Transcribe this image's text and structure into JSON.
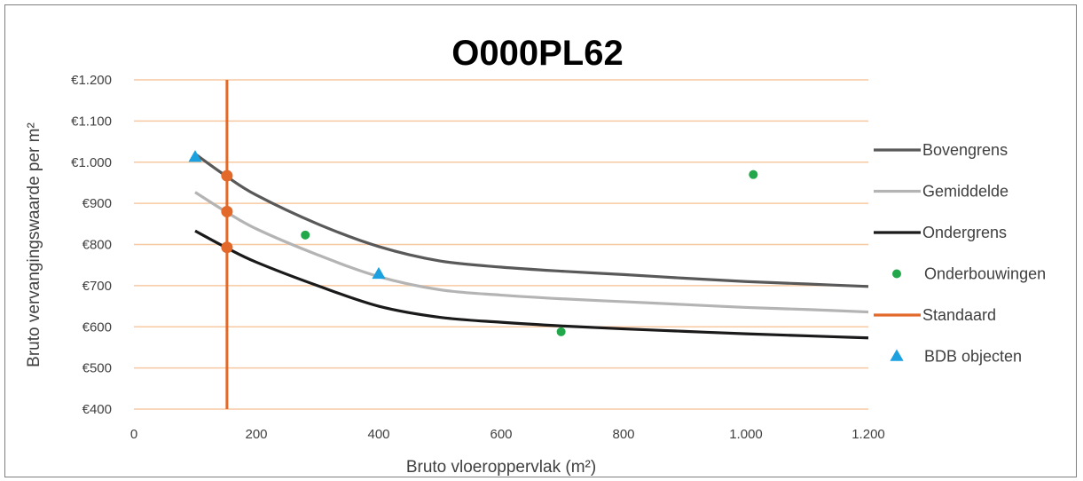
{
  "chart_data": {
    "type": "line",
    "title": "O000PL62",
    "xlabel": "Bruto vloeroppervlak (m²)",
    "ylabel": "Bruto vervangingswaarde per m²",
    "xlim": [
      0,
      1200
    ],
    "ylim": [
      400,
      1200
    ],
    "x_ticks": [
      0,
      200,
      400,
      600,
      800,
      1000,
      1200
    ],
    "x_tick_labels": [
      "0",
      "200",
      "400",
      "600",
      "800",
      "1.000",
      "1.200"
    ],
    "y_ticks": [
      400,
      500,
      600,
      700,
      800,
      900,
      1000,
      1100,
      1200
    ],
    "y_tick_labels": [
      "€400",
      "€500",
      "€600",
      "€700",
      "€800",
      "€900",
      "€1.000",
      "€1.100",
      "€1.200"
    ],
    "grid": "horizontal",
    "legend_position": "right",
    "series": [
      {
        "name": "Bovengrens",
        "kind": "line",
        "color": "#595959",
        "points": [
          [
            100,
            1020
          ],
          [
            150,
            967
          ],
          [
            200,
            920
          ],
          [
            300,
            850
          ],
          [
            400,
            795
          ],
          [
            500,
            760
          ],
          [
            600,
            745
          ],
          [
            700,
            735
          ],
          [
            800,
            727
          ],
          [
            900,
            718
          ],
          [
            1000,
            710
          ],
          [
            1100,
            704
          ],
          [
            1200,
            698
          ]
        ]
      },
      {
        "name": "Gemiddelde",
        "kind": "line",
        "color": "#b4b4b4",
        "points": [
          [
            100,
            927
          ],
          [
            150,
            880
          ],
          [
            200,
            838
          ],
          [
            300,
            775
          ],
          [
            400,
            722
          ],
          [
            500,
            690
          ],
          [
            600,
            677
          ],
          [
            700,
            668
          ],
          [
            800,
            661
          ],
          [
            900,
            654
          ],
          [
            1000,
            647
          ],
          [
            1100,
            642
          ],
          [
            1200,
            636
          ]
        ]
      },
      {
        "name": "Ondergrens",
        "kind": "line",
        "color": "#1a1a1a",
        "points": [
          [
            100,
            833
          ],
          [
            150,
            793
          ],
          [
            200,
            757
          ],
          [
            300,
            700
          ],
          [
            400,
            650
          ],
          [
            500,
            623
          ],
          [
            600,
            611
          ],
          [
            700,
            602
          ],
          [
            800,
            595
          ],
          [
            900,
            589
          ],
          [
            1000,
            583
          ],
          [
            1100,
            578
          ],
          [
            1200,
            573
          ]
        ]
      },
      {
        "name": "Onderbouwingen",
        "kind": "scatter",
        "marker": "circle",
        "color": "#22a84a",
        "points": [
          [
            280,
            823
          ],
          [
            698,
            588
          ],
          [
            1012,
            970
          ]
        ]
      },
      {
        "name": "Standaard",
        "kind": "vline",
        "color": "#e3692a",
        "x": 152,
        "points": [
          [
            152,
            967
          ],
          [
            152,
            880
          ],
          [
            152,
            793
          ]
        ]
      },
      {
        "name": "BDB objecten",
        "kind": "scatter",
        "marker": "triangle",
        "color": "#1ba0e0",
        "points": [
          [
            100,
            1012
          ],
          [
            400,
            728
          ]
        ]
      }
    ]
  }
}
